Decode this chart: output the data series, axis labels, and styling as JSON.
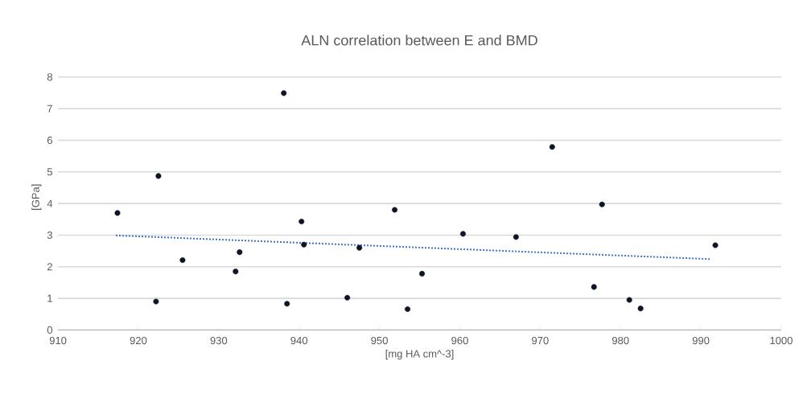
{
  "chart_data": {
    "type": "scatter",
    "title": "ALN correlation between E and BMD",
    "xlabel": "[mg HA cm^-3]",
    "ylabel": "[GPa]",
    "xlim": [
      910,
      1000
    ],
    "ylim": [
      0,
      8
    ],
    "xticks": [
      910,
      920,
      930,
      940,
      950,
      960,
      970,
      980,
      990,
      1000
    ],
    "yticks": [
      0,
      1,
      2,
      3,
      4,
      5,
      6,
      7,
      8
    ],
    "grid": "y",
    "series": [
      {
        "color": "#0d1526",
        "marker": "circle",
        "x": [
          917.4,
          922.5,
          922.2,
          925.5,
          932.1,
          932.6,
          938.1,
          938.5,
          940.3,
          940.6,
          946.0,
          947.5,
          951.9,
          953.5,
          955.3,
          960.4,
          967.0,
          971.5,
          976.7,
          977.7,
          981.1,
          982.5,
          991.8
        ],
        "values": [
          3.7,
          4.87,
          0.9,
          2.21,
          1.85,
          2.46,
          7.49,
          0.83,
          3.43,
          2.7,
          1.02,
          2.6,
          3.8,
          0.66,
          1.78,
          3.04,
          2.94,
          5.79,
          1.36,
          3.97,
          0.95,
          0.68,
          2.68
        ]
      },
      {
        "type": "line",
        "marker": "none",
        "line_style": "dotted",
        "color": "#4472c4",
        "x": [
          917.2,
          991.3
        ],
        "values": [
          2.99,
          2.24
        ]
      }
    ]
  }
}
